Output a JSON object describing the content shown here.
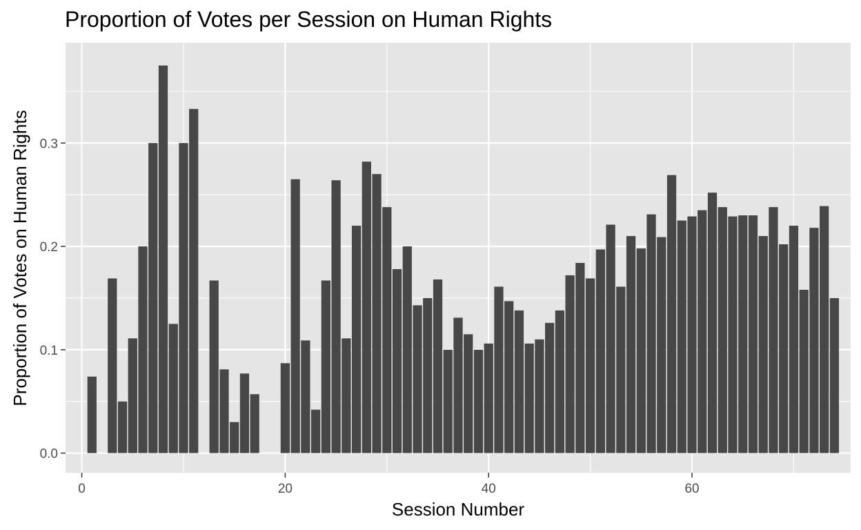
{
  "chart_data": {
    "type": "bar",
    "title": "Proportion of Votes per Session on Human Rights",
    "xlabel": "Session Number",
    "ylabel": "Proportion of Votes on Human Rights",
    "xlim": [
      -1.6,
      75.6
    ],
    "ylim": [
      -0.019,
      0.397
    ],
    "x_ticks": [
      0,
      20,
      40,
      60
    ],
    "x_tick_labels": [
      "0",
      "20",
      "40",
      "60"
    ],
    "y_ticks": [
      0.0,
      0.1,
      0.2,
      0.3
    ],
    "y_tick_labels": [
      "0.0",
      "0.1",
      "0.2",
      "0.3"
    ],
    "grid": true,
    "background": "#e5e5e5",
    "bar_color": "#474747",
    "x": [
      1,
      3,
      4,
      5,
      6,
      7,
      8,
      9,
      10,
      11,
      13,
      14,
      15,
      16,
      17,
      20,
      21,
      22,
      23,
      24,
      25,
      26,
      27,
      28,
      29,
      30,
      31,
      32,
      33,
      34,
      35,
      36,
      37,
      38,
      39,
      40,
      41,
      42,
      43,
      44,
      45,
      46,
      47,
      48,
      49,
      50,
      51,
      52,
      53,
      54,
      55,
      56,
      57,
      58,
      59,
      60,
      61,
      62,
      63,
      64,
      65,
      66,
      67,
      68,
      69,
      70,
      71,
      72,
      73,
      74
    ],
    "values": [
      0.074,
      0.169,
      0.05,
      0.111,
      0.2,
      0.3,
      0.375,
      0.125,
      0.3,
      0.333,
      0.167,
      0.081,
      0.03,
      0.077,
      0.057,
      0.087,
      0.265,
      0.109,
      0.042,
      0.167,
      0.264,
      0.111,
      0.22,
      0.282,
      0.27,
      0.238,
      0.178,
      0.2,
      0.143,
      0.15,
      0.168,
      0.1,
      0.131,
      0.115,
      0.1,
      0.106,
      0.161,
      0.147,
      0.138,
      0.106,
      0.11,
      0.126,
      0.138,
      0.172,
      0.184,
      0.169,
      0.197,
      0.221,
      0.161,
      0.21,
      0.198,
      0.231,
      0.209,
      0.269,
      0.225,
      0.229,
      0.235,
      0.252,
      0.238,
      0.229,
      0.23,
      0.23,
      0.21,
      0.238,
      0.202,
      0.22,
      0.158,
      0.218,
      0.239,
      0.15
    ]
  }
}
